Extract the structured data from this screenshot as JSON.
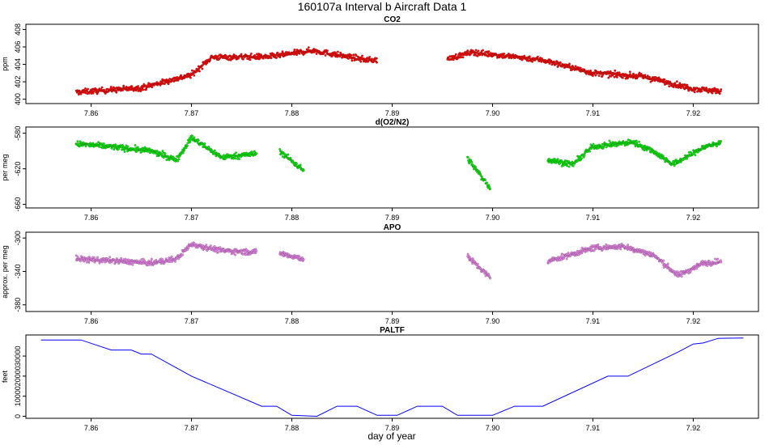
{
  "figure": {
    "title": "160107a   Interval b Aircraft Data 1",
    "xlabel": "day of year"
  },
  "chart_data": [
    {
      "type": "scatter",
      "title": "CO2",
      "ylabel": "ppm",
      "xlim": [
        7.8535,
        7.9265
      ],
      "ylim": [
        399.5,
        408.6
      ],
      "x_ticks": [
        "7.86",
        "7.87",
        "7.88",
        "7.89",
        "7.90",
        "7.91",
        "7.92"
      ],
      "y_ticks": [
        "400",
        "402",
        "404",
        "406",
        "408"
      ],
      "x_range": [
        7.8585,
        7.9228
      ],
      "gap": [
        7.8885,
        7.8955
      ],
      "color": "#ff0000",
      "trend": [
        [
          7.8585,
          400.8
        ],
        [
          7.865,
          401.3
        ],
        [
          7.87,
          402.8
        ],
        [
          7.872,
          404.8
        ],
        [
          7.878,
          404.9
        ],
        [
          7.882,
          405.6
        ],
        [
          7.8875,
          404.5
        ],
        [
          7.8955,
          404.6
        ],
        [
          7.898,
          405.4
        ],
        [
          7.905,
          404.5
        ],
        [
          7.91,
          403.0
        ],
        [
          7.915,
          402.6
        ],
        [
          7.92,
          401.2
        ],
        [
          7.9228,
          400.9
        ]
      ]
    },
    {
      "type": "scatter",
      "title": "d(O2/N2)",
      "ylabel": "per meg",
      "xlim": [
        7.8535,
        7.9265
      ],
      "ylim": [
        -664,
        -573
      ],
      "x_ticks": [
        "7.86",
        "7.87",
        "7.88",
        "7.89",
        "7.90",
        "7.91",
        "7.92"
      ],
      "y_ticks": [
        "-660",
        "-620",
        "-580"
      ],
      "x_range": [
        7.8585,
        7.9228
      ],
      "segments": [
        [
          7.8585,
          7.8765
        ],
        [
          7.8788,
          7.8812
        ],
        [
          7.8975,
          7.8998
        ],
        [
          7.9055,
          7.9228
        ]
      ],
      "color": "#00ee00",
      "trend": [
        [
          7.8585,
          -592
        ],
        [
          7.862,
          -595
        ],
        [
          7.866,
          -600
        ],
        [
          7.8685,
          -610
        ],
        [
          7.87,
          -585
        ],
        [
          7.873,
          -607
        ],
        [
          7.8765,
          -603
        ],
        [
          7.8788,
          -600
        ],
        [
          7.8812,
          -622
        ],
        [
          7.8975,
          -608
        ],
        [
          7.8998,
          -642
        ],
        [
          7.9055,
          -610
        ],
        [
          7.908,
          -615
        ],
        [
          7.91,
          -595
        ],
        [
          7.914,
          -590
        ],
        [
          7.916,
          -600
        ],
        [
          7.918,
          -615
        ],
        [
          7.921,
          -596
        ],
        [
          7.9228,
          -590
        ]
      ]
    },
    {
      "type": "scatter",
      "title": "APO",
      "ylabel": "approx. per meg",
      "xlim": [
        7.8535,
        7.9265
      ],
      "ylim": [
        -388,
        -293
      ],
      "x_ticks": [
        "7.86",
        "7.87",
        "7.88",
        "7.89",
        "7.90",
        "7.91",
        "7.92"
      ],
      "y_ticks": [
        "-380",
        "-340",
        "-300"
      ],
      "x_range": [
        7.8585,
        7.9228
      ],
      "segments": [
        [
          7.8585,
          7.8765
        ],
        [
          7.8788,
          7.8812
        ],
        [
          7.8975,
          7.8998
        ],
        [
          7.9055,
          7.9228
        ]
      ],
      "color": "#ee82ee",
      "trend": [
        [
          7.8585,
          -325
        ],
        [
          7.862,
          -327
        ],
        [
          7.866,
          -330
        ],
        [
          7.8685,
          -325
        ],
        [
          7.87,
          -307
        ],
        [
          7.873,
          -315
        ],
        [
          7.8765,
          -317
        ],
        [
          7.8788,
          -318
        ],
        [
          7.8812,
          -325
        ],
        [
          7.8975,
          -322
        ],
        [
          7.8998,
          -348
        ],
        [
          7.9055,
          -328
        ],
        [
          7.91,
          -312
        ],
        [
          7.913,
          -310
        ],
        [
          7.916,
          -320
        ],
        [
          7.9185,
          -345
        ],
        [
          7.921,
          -330
        ],
        [
          7.9228,
          -328
        ]
      ]
    },
    {
      "type": "line",
      "title": "PALTF",
      "ylabel": "feet",
      "xlim": [
        7.8535,
        7.9265
      ],
      "ylim": [
        -1000,
        40500
      ],
      "x_ticks": [
        "7.86",
        "7.87",
        "7.88",
        "7.89",
        "7.90",
        "7.91",
        "7.92"
      ],
      "y_ticks": [
        "0",
        "10000",
        "20000",
        "30000"
      ],
      "color": "#0000ff",
      "x": [
        7.855,
        7.859,
        7.862,
        7.864,
        7.865,
        7.866,
        7.87,
        7.877,
        7.8785,
        7.88,
        7.8825,
        7.8845,
        7.8865,
        7.8885,
        7.8905,
        7.8925,
        7.895,
        7.8965,
        7.8985,
        7.9,
        7.9022,
        7.905,
        7.9115,
        7.9135,
        7.9185,
        7.92,
        7.921,
        7.9225,
        7.925
      ],
      "y": [
        38000,
        38000,
        33000,
        33000,
        31000,
        31000,
        20000,
        5000,
        5000,
        500,
        0,
        5000,
        5000,
        500,
        500,
        5000,
        5000,
        500,
        500,
        500,
        5000,
        5000,
        20000,
        20000,
        32000,
        36000,
        36500,
        38800,
        39000
      ]
    }
  ]
}
